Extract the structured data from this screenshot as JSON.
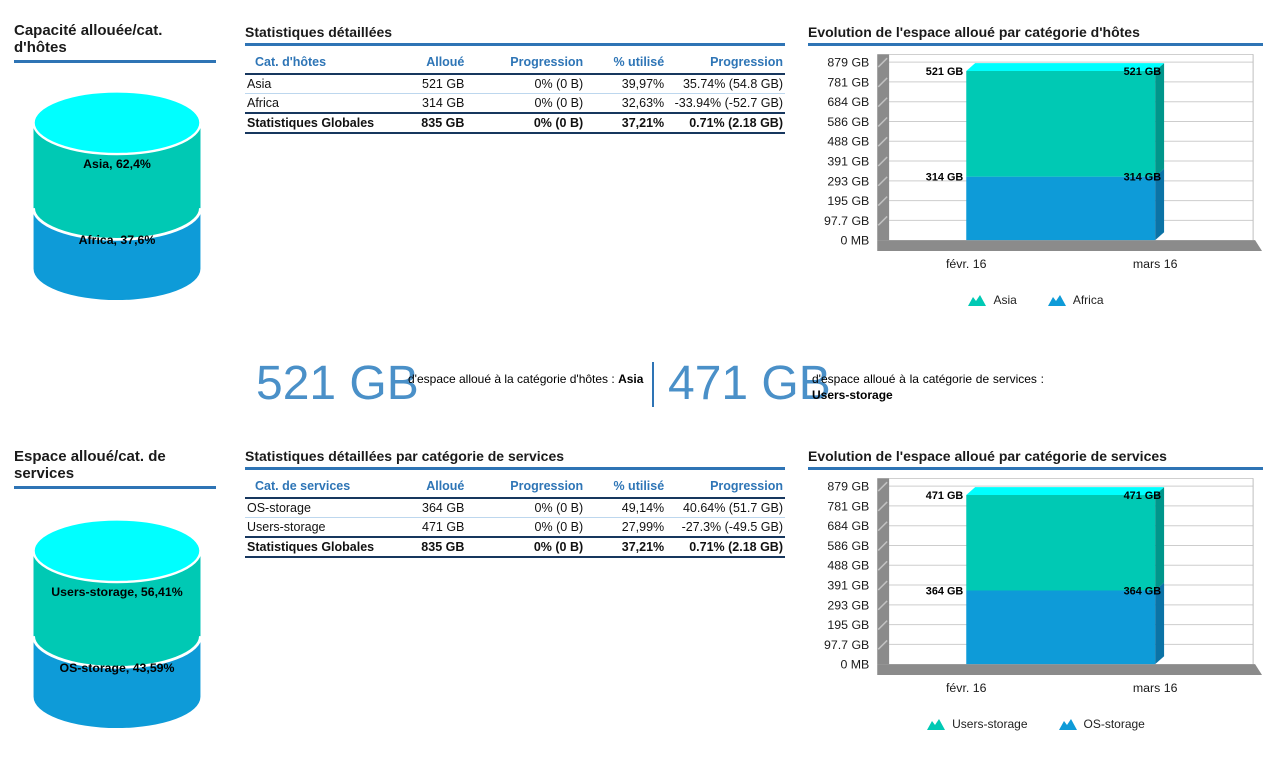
{
  "palette": {
    "series_teal": "#00C9B4",
    "series_teal_dark": "#00968B",
    "series_blue": "#0E9BD8",
    "series_blue_dark": "#0B73A6",
    "cylinder_top": "#00FFFF",
    "accent_blue": "#2E74B5",
    "header_blue": "#2E75B6",
    "dark_rule": "#17375E",
    "big_number_blue": "#4A90C8"
  },
  "summary": {
    "left": {
      "value": "521 GB",
      "text": "d'espace alloué à la catégorie d'hôtes :",
      "highlight": "Asia"
    },
    "right": {
      "value": "471 GB",
      "text": "d'espace alloué à la catégorie de services :",
      "highlight": "Users-storage"
    }
  },
  "chart_data": [
    {
      "id": "hosts-pie",
      "type": "pie",
      "style": "3d-cylinder",
      "title": "Capacité allouée/cat. d'hôtes",
      "slices": [
        {
          "label": "Asia",
          "percent": 62.4,
          "display": "Asia, 62,4%",
          "color": "#00C9B4"
        },
        {
          "label": "Africa",
          "percent": 37.6,
          "display": "Africa, 37,6%",
          "color": "#0E9BD8"
        }
      ],
      "top_face_color": "#00FFFF"
    },
    {
      "id": "hosts-table",
      "type": "table",
      "title": "Statistiques détaillées",
      "columns": [
        "Cat. d'hôtes",
        "Alloué",
        "Progression",
        "% utilisé",
        "Progression"
      ],
      "rows": [
        [
          "Asia",
          "521 GB",
          "0% (0 B)",
          "39,97%",
          "35.74% (54.8 GB)"
        ],
        [
          "Africa",
          "314 GB",
          "0% (0 B)",
          "32,63%",
          "-33.94% (-52.7 GB)"
        ]
      ],
      "total": [
        "Statistiques Globales",
        "835 GB",
        "0% (0 B)",
        "37,21%",
        "0.71% (2.18 GB)"
      ]
    },
    {
      "id": "hosts-evolution",
      "type": "area",
      "stacked": true,
      "grid": true,
      "legend_position": "bottom",
      "title": "Evolution de l'espace alloué par catégorie d'hôtes",
      "x_labels": [
        "févr. 16",
        "mars 16"
      ],
      "y_tick_labels": [
        "879 GB",
        "781 GB",
        "684 GB",
        "586 GB",
        "488 GB",
        "391 GB",
        "293 GB",
        "195 GB",
        "97.7 GB",
        "0 MB"
      ],
      "y_max": 879,
      "series": [
        {
          "name": "Asia",
          "values": [
            521,
            521
          ],
          "point_labels": [
            "521 GB",
            "521 GB"
          ],
          "color": "#00C9B4",
          "side_color": "#00968B"
        },
        {
          "name": "Africa",
          "values": [
            314,
            314
          ],
          "point_labels": [
            "314 GB",
            "314 GB"
          ],
          "color": "#0E9BD8",
          "side_color": "#0B73A6"
        }
      ],
      "top_face_color": "#00FFFF"
    },
    {
      "id": "services-pie",
      "type": "pie",
      "style": "3d-cylinder",
      "title": "Espace alloué/cat. de services",
      "slices": [
        {
          "label": "Users-storage",
          "percent": 56.41,
          "display": "Users-storage, 56,41%",
          "color": "#00C9B4"
        },
        {
          "label": "OS-storage",
          "percent": 43.59,
          "display": "OS-storage, 43,59%",
          "color": "#0E9BD8"
        }
      ],
      "top_face_color": "#00FFFF"
    },
    {
      "id": "services-table",
      "type": "table",
      "title": "Statistiques détaillées par catégorie de services",
      "columns": [
        "Cat. de services",
        "Alloué",
        "Progression",
        "% utilisé",
        "Progression"
      ],
      "rows": [
        [
          "OS-storage",
          "364 GB",
          "0% (0 B)",
          "49,14%",
          "40.64% (51.7 GB)"
        ],
        [
          "Users-storage",
          "471 GB",
          "0% (0 B)",
          "27,99%",
          "-27.3% (-49.5 GB)"
        ]
      ],
      "total": [
        "Statistiques Globales",
        "835 GB",
        "0% (0 B)",
        "37,21%",
        "0.71% (2.18 GB)"
      ]
    },
    {
      "id": "services-evolution",
      "type": "area",
      "stacked": true,
      "grid": true,
      "legend_position": "bottom",
      "title": "Evolution de l'espace alloué par catégorie de services",
      "x_labels": [
        "févr. 16",
        "mars 16"
      ],
      "y_tick_labels": [
        "879 GB",
        "781 GB",
        "684 GB",
        "586 GB",
        "488 GB",
        "391 GB",
        "293 GB",
        "195 GB",
        "97.7 GB",
        "0 MB"
      ],
      "y_max": 879,
      "series": [
        {
          "name": "Users-storage",
          "values": [
            471,
            471
          ],
          "point_labels": [
            "471 GB",
            "471 GB"
          ],
          "color": "#00C9B4",
          "side_color": "#00968B"
        },
        {
          "name": "OS-storage",
          "values": [
            364,
            364
          ],
          "point_labels": [
            "364 GB",
            "364 GB"
          ],
          "color": "#0E9BD8",
          "side_color": "#0B73A6"
        }
      ],
      "top_face_color": "#00FFFF"
    }
  ]
}
